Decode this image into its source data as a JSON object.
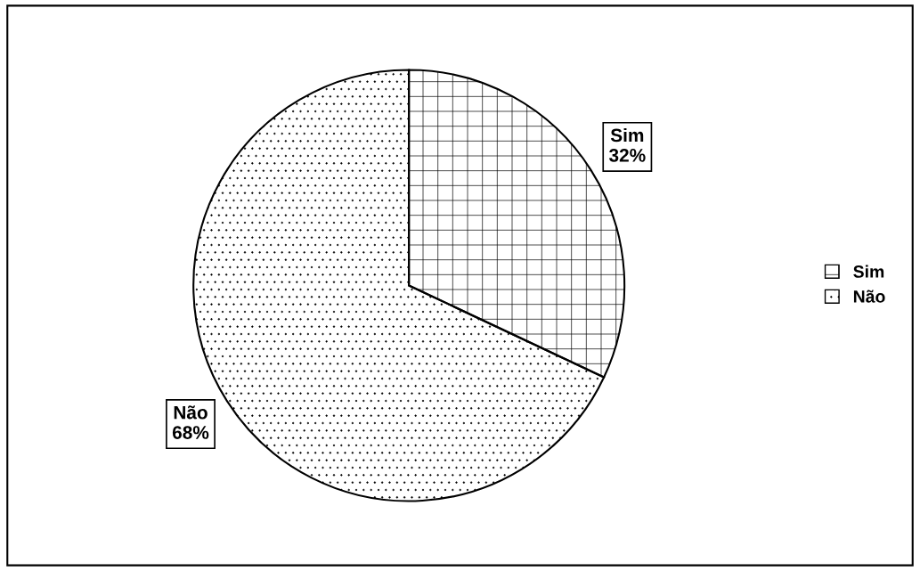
{
  "chart_data": {
    "type": "pie",
    "categories": [
      "Sim",
      "Não"
    ],
    "values": [
      32,
      68
    ],
    "colors": [
      "#ffffff",
      "#ffffff"
    ],
    "value_labels": [
      "32%",
      "68%"
    ],
    "legend": "right"
  }
}
